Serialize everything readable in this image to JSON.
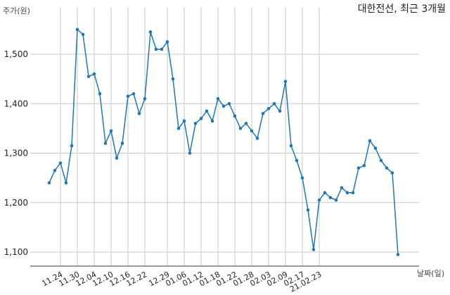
{
  "chart_data": {
    "type": "line",
    "title": "대한전선, 최근 3개월",
    "ylabel": "주가(원)",
    "xlabel": "날짜(일)",
    "ylim": [
      1075,
      1565
    ],
    "yticks": [
      1100,
      1200,
      1300,
      1400,
      1500
    ],
    "ytick_labels": [
      "1,100",
      "1,200",
      "1,300",
      "1,400",
      "1,500"
    ],
    "xtick_labels": [
      "11.24",
      "11.30",
      "12.04",
      "12.10",
      "12.16",
      "12.22",
      "12.29",
      "01.06",
      "01.12",
      "01.18",
      "01.22",
      "01.28",
      "02.03",
      "02.09",
      "02.17",
      "21.02.23"
    ],
    "xtick_index": [
      2,
      5,
      8,
      11,
      14,
      17,
      21,
      24,
      27,
      30,
      33,
      36,
      39,
      42,
      45,
      48
    ],
    "grid": true,
    "series": [
      {
        "color": "#1f77b4",
        "values": [
          1240,
          1265,
          1280,
          1240,
          1315,
          1550,
          1540,
          1455,
          1460,
          1420,
          1320,
          1345,
          1290,
          1320,
          1415,
          1420,
          1380,
          1410,
          1545,
          1510,
          1510,
          1525,
          1450,
          1350,
          1365,
          1300,
          1360,
          1370,
          1385,
          1365,
          1410,
          1395,
          1400,
          1375,
          1350,
          1360,
          1345,
          1330,
          1380,
          1390,
          1400,
          1385,
          1445,
          1315,
          1285,
          1250,
          1185,
          1105,
          1205,
          1220,
          1210,
          1205,
          1230,
          1220,
          1220,
          1270,
          1275,
          1325,
          1310,
          1285,
          1270,
          1260,
          1095
        ]
      }
    ]
  }
}
